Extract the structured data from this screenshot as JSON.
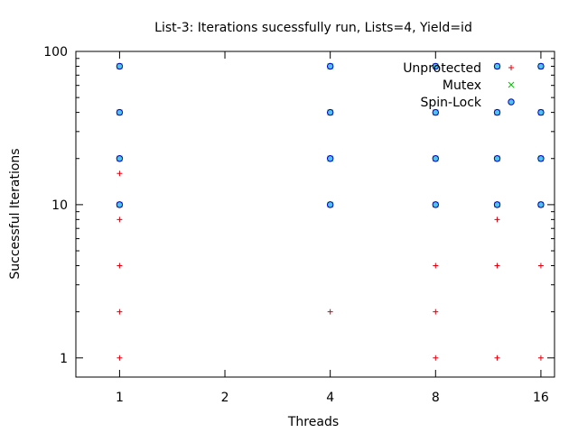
{
  "chart_data": {
    "type": "scatter",
    "title": "List-3: Iterations sucessfully run, Lists=4, Yield=id",
    "xlabel": "Threads",
    "ylabel": "Successful Iterations",
    "x_scale": "log",
    "y_scale": "log",
    "xlim": [
      0.75,
      17.5
    ],
    "ylim": [
      0.75,
      100
    ],
    "x_ticks": [
      1,
      2,
      4,
      8,
      16
    ],
    "x_tick_labels": [
      "1",
      "2",
      "4",
      "8",
      "16"
    ],
    "y_ticks": [
      1,
      10,
      100
    ],
    "y_tick_labels": [
      "1",
      "10",
      "100"
    ],
    "grid": false,
    "legend_position": "top-right",
    "series": [
      {
        "name": "Unprotected",
        "marker": "plus",
        "color": "#e0000e",
        "points": [
          [
            1,
            1
          ],
          [
            1,
            2
          ],
          [
            1,
            4
          ],
          [
            1,
            8
          ],
          [
            1,
            16
          ],
          [
            4,
            2
          ],
          [
            8,
            1
          ],
          [
            8,
            2
          ],
          [
            8,
            4
          ],
          [
            12,
            1
          ],
          [
            12,
            4
          ],
          [
            12,
            8
          ],
          [
            16,
            1
          ],
          [
            16,
            4
          ]
        ]
      },
      {
        "name": "Mutex",
        "marker": "cross",
        "color": "#00c000",
        "points": [
          [
            1,
            10
          ],
          [
            1,
            20
          ],
          [
            1,
            40
          ],
          [
            1,
            80
          ],
          [
            4,
            10
          ],
          [
            4,
            20
          ],
          [
            4,
            40
          ],
          [
            4,
            80
          ],
          [
            8,
            10
          ],
          [
            8,
            20
          ],
          [
            8,
            40
          ],
          [
            8,
            80
          ],
          [
            12,
            10
          ],
          [
            12,
            20
          ],
          [
            12,
            40
          ],
          [
            12,
            80
          ],
          [
            16,
            10
          ],
          [
            16,
            20
          ],
          [
            16,
            40
          ],
          [
            16,
            80
          ]
        ]
      },
      {
        "name": "Spin-Lock",
        "marker": "circle",
        "color": "#0000c8",
        "fill": "#4fc3e8",
        "points": [
          [
            1,
            10
          ],
          [
            1,
            20
          ],
          [
            1,
            40
          ],
          [
            1,
            80
          ],
          [
            4,
            10
          ],
          [
            4,
            20
          ],
          [
            4,
            40
          ],
          [
            4,
            80
          ],
          [
            8,
            10
          ],
          [
            8,
            20
          ],
          [
            8,
            40
          ],
          [
            8,
            80
          ],
          [
            12,
            10
          ],
          [
            12,
            20
          ],
          [
            12,
            40
          ],
          [
            12,
            80
          ],
          [
            16,
            10
          ],
          [
            16,
            20
          ],
          [
            16,
            40
          ],
          [
            16,
            80
          ]
        ]
      }
    ]
  }
}
